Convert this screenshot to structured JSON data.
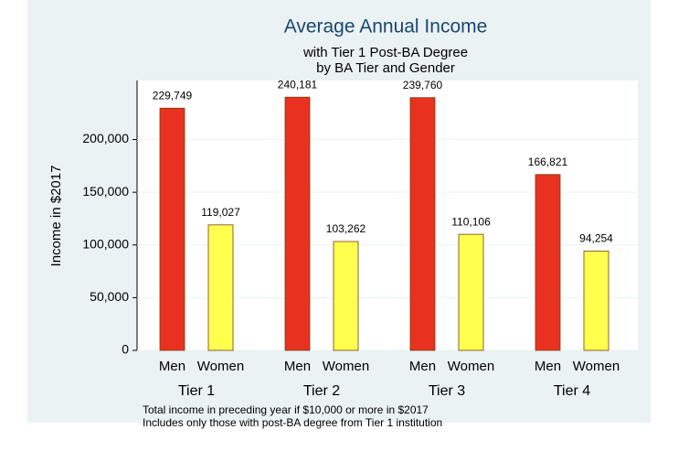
{
  "chart_data": {
    "type": "grouped-bar",
    "title": "Average Annual Income",
    "subtitle": [
      "with Tier 1 Post-BA Degree",
      "by BA Tier and Gender"
    ],
    "y_label": "Income in $2017",
    "categories": [
      "Tier 1",
      "Tier 2",
      "Tier 3",
      "Tier 4"
    ],
    "series": [
      {
        "name": "Men",
        "color": "#e8321f",
        "values": [
          229749,
          240181,
          239760,
          166821
        ],
        "value_labels": [
          "229,749",
          "240,181",
          "239,760",
          "166,821"
        ]
      },
      {
        "name": "Women",
        "color": "#ffff4d",
        "values": [
          119027,
          103262,
          110106,
          94254
        ],
        "value_labels": [
          "119,027",
          "103,262",
          "110,106",
          "94,254"
        ]
      }
    ],
    "ylim": [
      0,
      256000
    ],
    "yticks": [
      0,
      {
        "value": 50000,
        "label": "50,000"
      },
      {
        "value": 100000,
        "label": "100,000"
      },
      {
        "value": 150000,
        "label": "150,000"
      },
      {
        "value": 200000,
        "label": "200,000"
      }
    ],
    "grid": true,
    "notes": [
      "Total income in preceding year if $10,000 or more in $2017",
      "Includes only those with post-BA degree from Tier 1 institution"
    ]
  }
}
